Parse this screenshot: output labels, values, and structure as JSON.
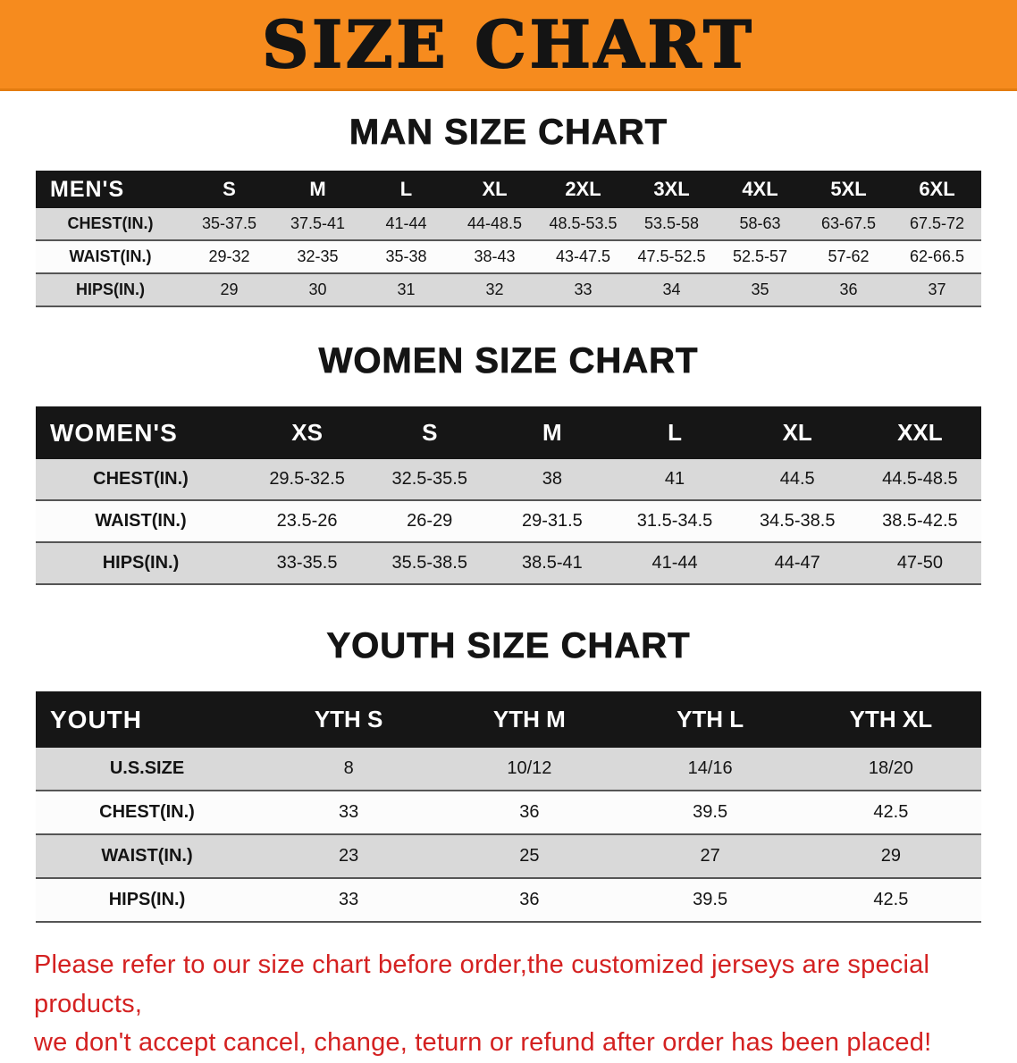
{
  "banner": {
    "title": "SIZE CHART"
  },
  "colors": {
    "banner_bg": "#f68b1e",
    "table_header_bg": "#161616",
    "row_alt_bg": "#d9d9d9",
    "note_text": "#d42121"
  },
  "sections": [
    {
      "heading": "MAN SIZE CHART",
      "table": {
        "header_label": "MEN'S",
        "columns": [
          "S",
          "M",
          "L",
          "XL",
          "2XL",
          "3XL",
          "4XL",
          "5XL",
          "6XL"
        ],
        "rows": [
          {
            "label": "CHEST(IN.)",
            "values": [
              "35-37.5",
              "37.5-41",
              "41-44",
              "44-48.5",
              "48.5-53.5",
              "53.5-58",
              "58-63",
              "63-67.5",
              "67.5-72"
            ]
          },
          {
            "label": "WAIST(IN.)",
            "values": [
              "29-32",
              "32-35",
              "35-38",
              "38-43",
              "43-47.5",
              "47.5-52.5",
              "52.5-57",
              "57-62",
              "62-66.5"
            ]
          },
          {
            "label": "HIPS(IN.)",
            "values": [
              "29",
              "30",
              "31",
              "32",
              "33",
              "34",
              "35",
              "36",
              "37"
            ]
          }
        ]
      }
    },
    {
      "heading": "WOMEN SIZE CHART",
      "table": {
        "header_label": "WOMEN'S",
        "columns": [
          "XS",
          "S",
          "M",
          "L",
          "XL",
          "XXL"
        ],
        "rows": [
          {
            "label": "CHEST(IN.)",
            "values": [
              "29.5-32.5",
              "32.5-35.5",
              "38",
              "41",
              "44.5",
              "44.5-48.5"
            ]
          },
          {
            "label": "WAIST(IN.)",
            "values": [
              "23.5-26",
              "26-29",
              "29-31.5",
              "31.5-34.5",
              "34.5-38.5",
              "38.5-42.5"
            ]
          },
          {
            "label": "HIPS(IN.)",
            "values": [
              "33-35.5",
              "35.5-38.5",
              "38.5-41",
              "41-44",
              "44-47",
              "47-50"
            ]
          }
        ]
      }
    },
    {
      "heading": "YOUTH SIZE CHART",
      "table": {
        "header_label": "YOUTH",
        "columns": [
          "YTH S",
          "YTH M",
          "YTH L",
          "YTH XL"
        ],
        "rows": [
          {
            "label": "U.S.SIZE",
            "values": [
              "8",
              "10/12",
              "14/16",
              "18/20"
            ]
          },
          {
            "label": "CHEST(IN.)",
            "values": [
              "33",
              "36",
              "39.5",
              "42.5"
            ]
          },
          {
            "label": "WAIST(IN.)",
            "values": [
              "23",
              "25",
              "27",
              "29"
            ]
          },
          {
            "label": "HIPS(IN.)",
            "values": [
              "33",
              "36",
              "39.5",
              "42.5"
            ]
          }
        ]
      }
    }
  ],
  "note": {
    "line1": "Please refer to our size chart before order,the customized jerseys are special products,",
    "line2": "we don't accept cancel, change, teturn or refund after order has been placed!"
  }
}
